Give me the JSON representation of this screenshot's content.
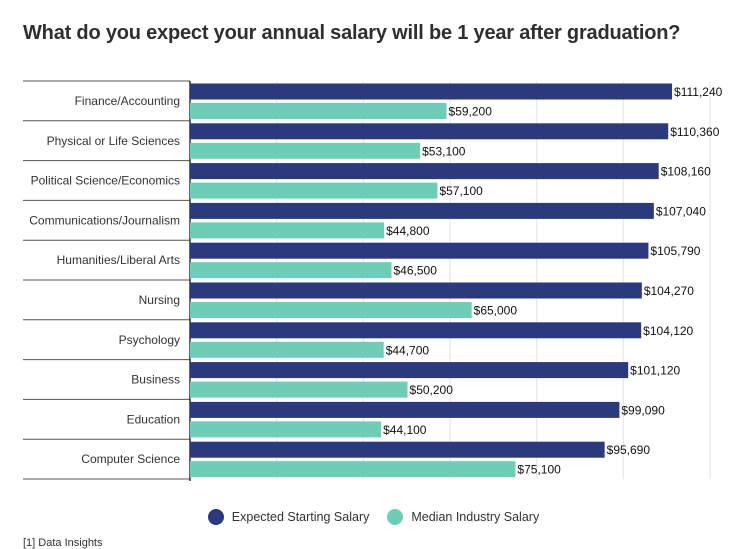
{
  "title": "What do you expect your annual salary will be 1 year after graduation?",
  "chart_data": {
    "type": "bar",
    "orientation": "horizontal",
    "title": "What do you expect your annual salary will be 1 year after graduation?",
    "xlabel": "",
    "ylabel": "",
    "xlim": [
      0,
      120000
    ],
    "grid": true,
    "legend_position": "bottom",
    "categories": [
      "Finance/Accounting",
      "Physical or Life Sciences",
      "Political Science/Economics",
      "Communications/Journalism",
      "Humanities/Liberal Arts",
      "Nursing",
      "Psychology",
      "Business",
      "Education",
      "Computer Science"
    ],
    "series": [
      {
        "name": "Expected Starting Salary",
        "color": "#2b3a7c",
        "values": [
          111240,
          110360,
          108160,
          107040,
          105790,
          104270,
          104120,
          101120,
          99090,
          95690
        ],
        "labels": [
          "$111,240",
          "$110,360",
          "$108,160",
          "$107,040",
          "$105,790",
          "$104,270",
          "$104,120",
          "$101,120",
          "$99,090",
          "$95,690"
        ]
      },
      {
        "name": "Median Industry Salary",
        "color": "#6ecdb6",
        "values": [
          59200,
          53100,
          57100,
          44800,
          46500,
          65000,
          44700,
          50200,
          44100,
          75100
        ],
        "labels": [
          "$59,200",
          "$53,100",
          "$57,100",
          "$44,800",
          "$46,500",
          "$65,000",
          "$44,700",
          "$50,200",
          "$44,100",
          "$75,100"
        ]
      }
    ]
  },
  "footnote": "[1] Data Insights"
}
